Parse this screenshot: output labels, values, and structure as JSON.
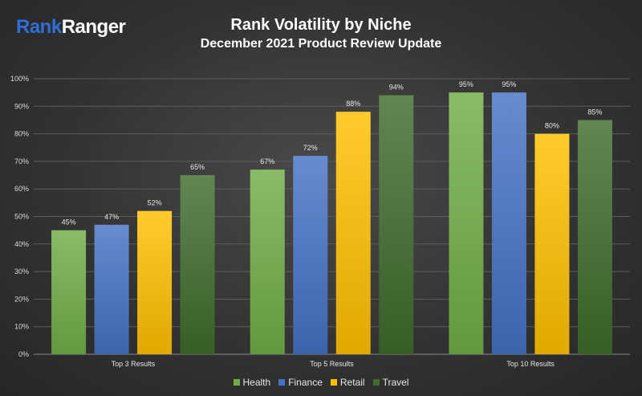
{
  "logo": {
    "part1": "Rank",
    "part2": "Ranger"
  },
  "header": {
    "title": "Rank Volatility by Niche",
    "subtitle": "December 2021 Product Review Update"
  },
  "colors": {
    "Health": "#70ad47",
    "Finance": "#4472c4",
    "Retail": "#ffc000",
    "Travel": "#3f6b2c"
  },
  "chart_data": {
    "type": "bar",
    "title": "Rank Volatility by Niche",
    "subtitle": "December 2021 Product Review Update",
    "categories": [
      "Top 3 Results",
      "Top 5 Results",
      "Top 10 Results"
    ],
    "series": [
      {
        "name": "Health",
        "values": [
          45,
          67,
          95
        ],
        "labels": [
          "45%",
          "67%",
          "95%"
        ]
      },
      {
        "name": "Finance",
        "values": [
          47,
          72,
          95
        ],
        "labels": [
          "47%",
          "72%",
          "95%"
        ]
      },
      {
        "name": "Retail",
        "values": [
          52,
          88,
          80
        ],
        "labels": [
          "52%",
          "88%",
          "80%"
        ]
      },
      {
        "name": "Travel",
        "values": [
          65,
          94,
          85
        ],
        "labels": [
          "65%",
          "94%",
          "85%"
        ]
      }
    ],
    "ylim": [
      0,
      100
    ],
    "yticks": [
      "0%",
      "10%",
      "20%",
      "30%",
      "40%",
      "50%",
      "60%",
      "70%",
      "80%",
      "90%",
      "100%"
    ],
    "xlabel": "",
    "ylabel": "",
    "grid": true,
    "legend": "bottom"
  }
}
